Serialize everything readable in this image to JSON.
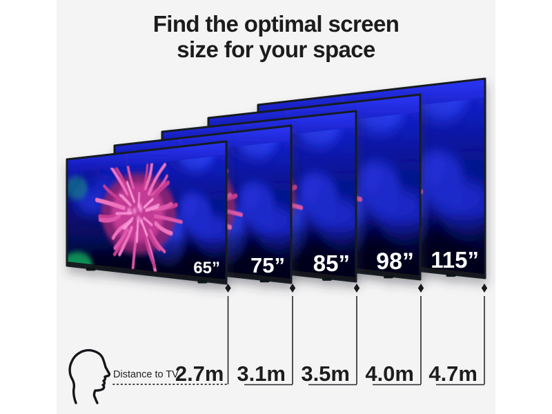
{
  "title": {
    "line1": "Find the optimal screen",
    "line2": "size for your space"
  },
  "legend": {
    "distance_label": "Distance to TV"
  },
  "tvs": [
    {
      "size_label": "65”",
      "distance_label": "2.7m"
    },
    {
      "size_label": "75”",
      "distance_label": "3.1m"
    },
    {
      "size_label": "85”",
      "distance_label": "3.5m"
    },
    {
      "size_label": "98”",
      "distance_label": "4.0m"
    },
    {
      "size_label": "115”",
      "distance_label": "4.7m"
    }
  ],
  "icons": {
    "legend_icon": "head-profile-icon",
    "marker_icon": "diamond-marker-icon"
  },
  "colors": {
    "page_background": "#ffffff",
    "canvas_background": "#f4f4f4",
    "title_text": "#1c1c1c",
    "distance_text": "#1d1d1d",
    "tv_label_text": "#ffffff",
    "dimension_line": "#26262b",
    "bezel": "#171a22",
    "screen_band_blue": "#1d24dd",
    "screen_base_blue": "#0c1598",
    "anemone_pink": "#e058ac",
    "green_glow": "#0ca65c"
  }
}
